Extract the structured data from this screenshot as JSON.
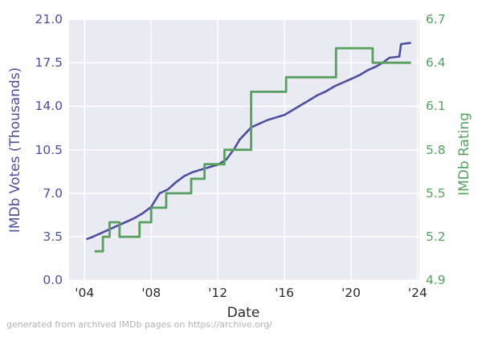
{
  "figure": {
    "background": "#ffffff",
    "plot_bg": "#eaeaf2",
    "grid_color": "#ffffff",
    "caption": "generated from archived IMDb pages on https://archive.org/",
    "caption_color": "#b3b3b3",
    "x_tick_color": "#2b2b2b"
  },
  "chart_data": {
    "type": "line",
    "title": "",
    "xlabel": "Date",
    "grid": true,
    "legend": "none",
    "xlim": [
      2003.07,
      2024.1
    ],
    "x_ticks": [
      "'04",
      "'08",
      "'12",
      "'16",
      "'20",
      "'24"
    ],
    "x_tick_years": [
      2004,
      2008,
      2012,
      2016,
      2020,
      2024
    ],
    "left_axis": {
      "label": "IMDb Votes (Thousands)",
      "color": "#4c4fa1",
      "lim": [
        0.0,
        21.0
      ],
      "ticks": [
        0.0,
        3.5,
        7.0,
        10.5,
        14.0,
        17.5,
        21.0
      ],
      "tick_labels": [
        "0.0",
        "3.5",
        "7.0",
        "10.5",
        "14.0",
        "17.5",
        "21.0"
      ]
    },
    "right_axis": {
      "label": "IMDb Rating",
      "color": "#57a05f",
      "lim": [
        4.9,
        6.7
      ],
      "ticks": [
        4.9,
        5.2,
        5.5,
        5.8,
        6.1,
        6.4,
        6.7
      ],
      "tick_labels": [
        "4.9",
        "5.2",
        "5.5",
        "5.8",
        "6.1",
        "6.4",
        "6.7"
      ]
    },
    "series": [
      {
        "name": "IMDb Votes (Thousands)",
        "axis": "left",
        "color": "#4c4fa1",
        "style": "line",
        "line_width": 2.6,
        "x": [
          2004.1,
          2004.5,
          2005.0,
          2005.5,
          2006.0,
          2006.5,
          2007.0,
          2007.5,
          2008.0,
          2008.5,
          2009.0,
          2009.5,
          2010.0,
          2010.5,
          2011.0,
          2011.5,
          2012.0,
          2012.5,
          2013.0,
          2013.3,
          2014.0,
          2014.5,
          2015.0,
          2015.5,
          2016.0,
          2016.5,
          2017.0,
          2017.5,
          2018.0,
          2018.5,
          2019.0,
          2019.5,
          2020.0,
          2020.5,
          2021.0,
          2021.5,
          2021.9,
          2022.3,
          2022.9,
          2023.0,
          2023.6
        ],
        "y": [
          3.3,
          3.5,
          3.8,
          4.1,
          4.4,
          4.7,
          5.0,
          5.4,
          5.9,
          7.0,
          7.3,
          7.9,
          8.4,
          8.7,
          8.9,
          9.1,
          9.3,
          9.7,
          10.6,
          11.3,
          12.3,
          12.6,
          12.9,
          13.1,
          13.3,
          13.7,
          14.1,
          14.5,
          14.9,
          15.2,
          15.6,
          15.9,
          16.2,
          16.5,
          16.9,
          17.2,
          17.5,
          17.9,
          18.0,
          19.0,
          19.1
        ]
      },
      {
        "name": "IMDb Rating",
        "axis": "right",
        "color": "#57a05f",
        "style": "step",
        "line_width": 2.8,
        "x": [
          2004.6,
          2005.1,
          2005.5,
          2006.1,
          2007.3,
          2008.0,
          2008.9,
          2010.4,
          2011.2,
          2012.4,
          2014.0,
          2016.1,
          2019.1,
          2021.3,
          2023.6
        ],
        "y": [
          5.1,
          5.2,
          5.3,
          5.2,
          5.3,
          5.4,
          5.5,
          5.6,
          5.7,
          5.8,
          6.2,
          6.3,
          6.5,
          6.4,
          6.4
        ]
      }
    ]
  }
}
